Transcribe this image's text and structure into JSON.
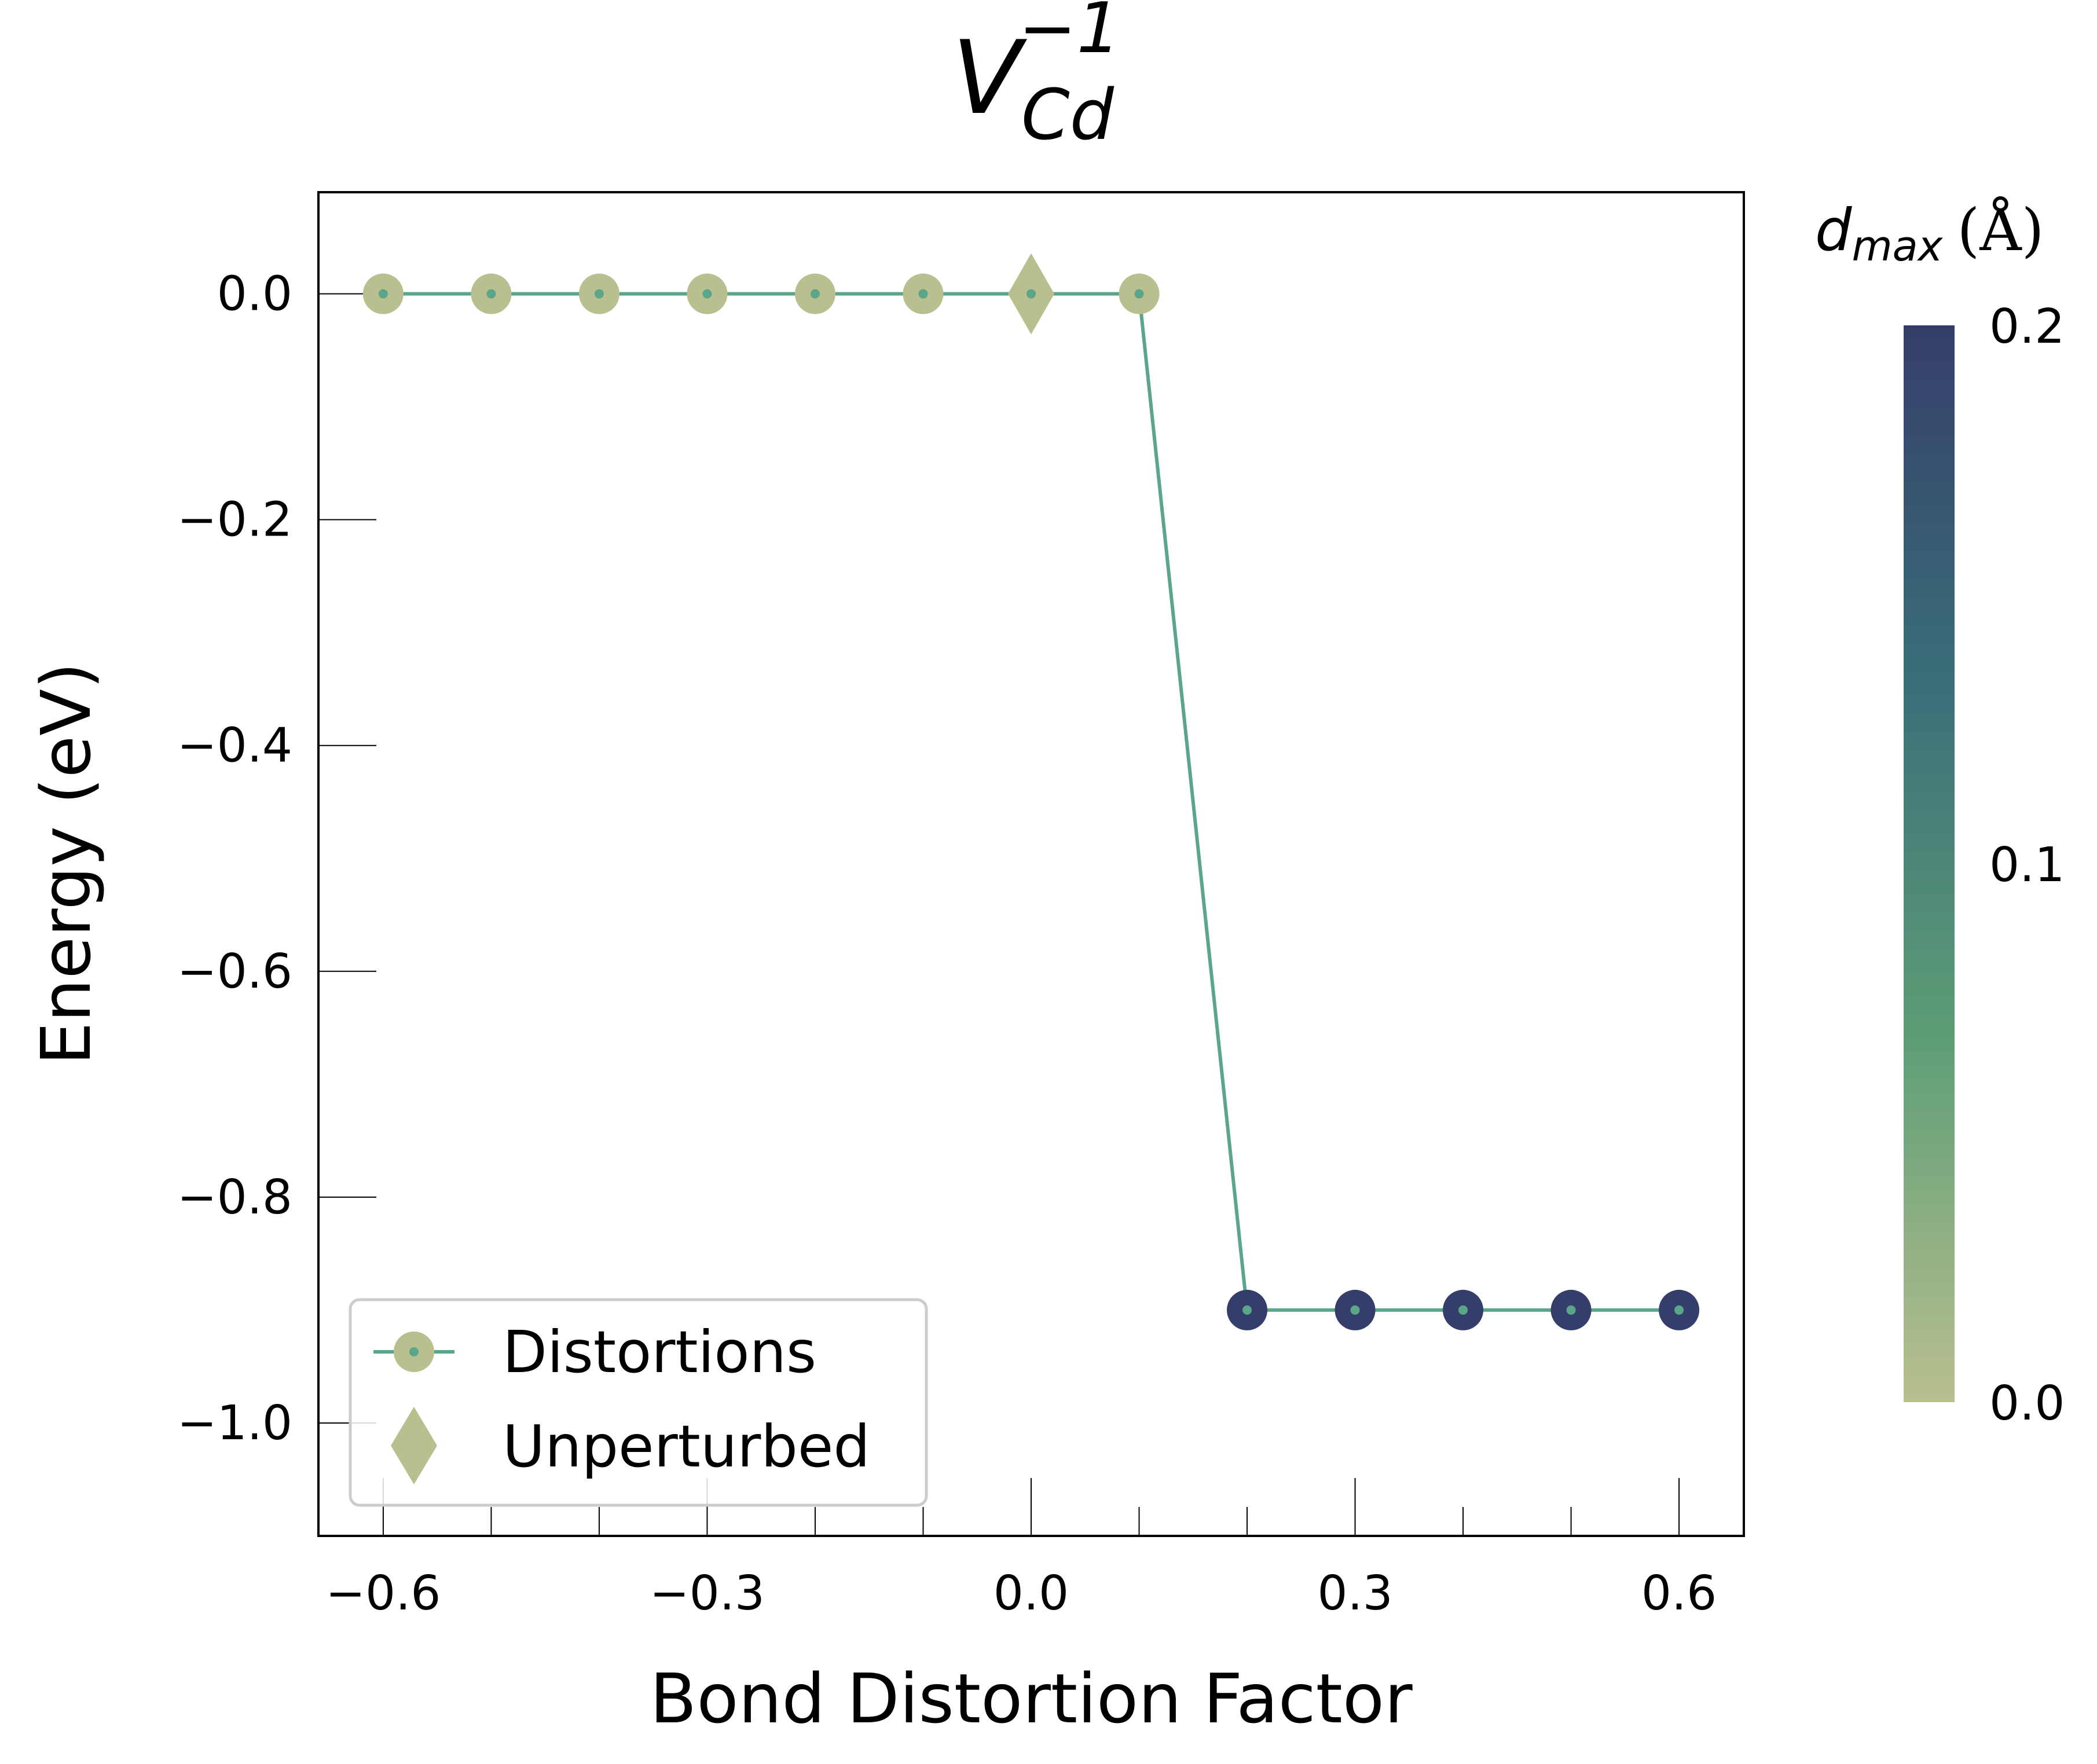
{
  "chart_data": {
    "type": "scatter",
    "title": {
      "base": "V",
      "sub": "Cd",
      "sup": "−1"
    },
    "xlabel": "Bond Distortion Factor",
    "ylabel": "Energy (eV)",
    "xlim": [
      -0.66,
      0.66
    ],
    "ylim": [
      -1.1,
      0.09
    ],
    "x_ticks": [
      -0.6,
      -0.5,
      -0.4,
      -0.3,
      -0.2,
      -0.1,
      0.0,
      0.1,
      0.2,
      0.3,
      0.4,
      0.5,
      0.6
    ],
    "x_tick_labels": [
      {
        "value": -0.6,
        "label": "−0.6"
      },
      {
        "value": -0.3,
        "label": "−0.3"
      },
      {
        "value": 0.0,
        "label": "0.0"
      },
      {
        "value": 0.3,
        "label": "0.3"
      },
      {
        "value": 0.6,
        "label": "0.6"
      }
    ],
    "y_ticks": [
      {
        "value": 0.0,
        "label": "0.0"
      },
      {
        "value": -0.2,
        "label": "−0.2"
      },
      {
        "value": -0.4,
        "label": "−0.4"
      },
      {
        "value": -0.6,
        "label": "−0.6"
      },
      {
        "value": -0.8,
        "label": "−0.8"
      },
      {
        "value": -1.0,
        "label": "−1.0"
      }
    ],
    "series": [
      {
        "name": "Distortions",
        "marker": "circle",
        "line_color": "#5ba68a",
        "x": [
          -0.6,
          -0.5,
          -0.4,
          -0.3,
          -0.2,
          -0.1,
          0.1,
          0.2,
          0.3,
          0.4,
          0.5,
          0.6
        ],
        "y": [
          0.0,
          0.0,
          0.0,
          0.0,
          0.0,
          0.0,
          0.0,
          -0.9,
          -0.9,
          -0.9,
          -0.9,
          -0.9
        ],
        "dmax": [
          0.0,
          0.0,
          0.0,
          0.0,
          0.0,
          0.0,
          0.0,
          0.2,
          0.2,
          0.2,
          0.2,
          0.2
        ]
      },
      {
        "name": "Unperturbed",
        "marker": "diamond",
        "x": [
          0.0
        ],
        "y": [
          0.0
        ],
        "dmax": [
          0.0
        ]
      }
    ],
    "colorbar": {
      "label": {
        "base": "d",
        "sub": "max",
        "unit": "(Å)"
      },
      "range": [
        0.0,
        0.2
      ],
      "ticks": [
        {
          "value": 0.0,
          "label": "0.0"
        },
        {
          "value": 0.1,
          "label": "0.1"
        },
        {
          "value": 0.2,
          "label": "0.2"
        }
      ],
      "colors": [
        "#b9bf8f",
        "#5e9e76",
        "#3a6f79",
        "#353e6a"
      ]
    },
    "legend": {
      "position": "lower-left"
    },
    "grid": false
  }
}
